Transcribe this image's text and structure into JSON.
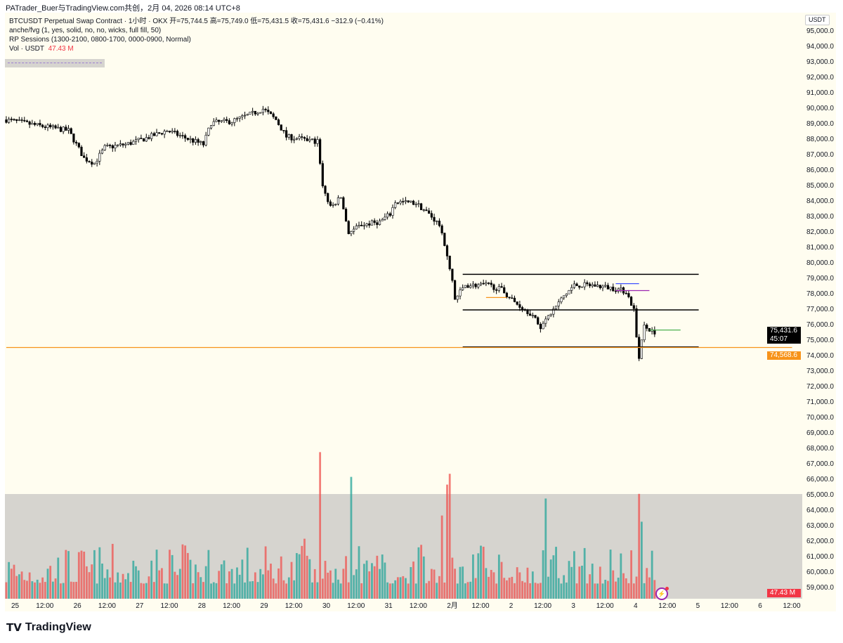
{
  "credit": "PATrader_Buer与TradingView.com共创，2月 04, 2026 08:14 UTC+8",
  "legend": {
    "symbol_line": "BTCUSDT Perpetual Swap Contract · 1小时 · OKX  开=75,744.5  高=75,749.0  低=75,431.5  收=75,431.6  −312.9 (−0.41%)",
    "indicator1": "anche/fvg (1, yes, solid, no, no, wicks, full fill, 50)",
    "indicator2": "RP Sessions (1300-2100, 0800-1700, 0000-0900, Normal)",
    "vol_label": "Vol · USDT",
    "vol_value": "47.43 M"
  },
  "currency_button": "USDT",
  "price_tags": {
    "last_price": "75,431.6",
    "countdown": "45:07",
    "level": "74,568.6",
    "volume": "47.43 M"
  },
  "colors": {
    "bg": "#fffdf0",
    "up": "#26a69a",
    "down": "#ef5350",
    "level": "#f7931a",
    "volume_pane": "#d6d4cf"
  },
  "footer": {
    "brand": "TradingView"
  },
  "chart_data": {
    "type": "candlestick",
    "symbol": "BTCUSDT",
    "interval": "1h",
    "y_ticks": [
      "95,000.0",
      "94,000.0",
      "93,000.0",
      "92,000.0",
      "91,000.0",
      "90,000.0",
      "89,000.0",
      "88,000.0",
      "87,000.0",
      "86,000.0",
      "85,000.0",
      "84,000.0",
      "83,000.0",
      "82,000.0",
      "81,000.0",
      "80,000.0",
      "79,000.0",
      "78,000.0",
      "77,000.0",
      "76,000.0",
      "75,000.0",
      "74,000.0",
      "73,000.0",
      "72,000.0",
      "71,000.0",
      "70,000.0",
      "69,000.0",
      "68,000.0",
      "67,000.0",
      "66,000.0",
      "65,000.0",
      "64,000.0",
      "63,000.0",
      "62,000.0",
      "61,000.0",
      "60,000.0",
      "59,000.0"
    ],
    "ylim": [
      59000,
      95000
    ],
    "x_ticks": [
      "25",
      "12:00",
      "26",
      "12:00",
      "27",
      "12:00",
      "28",
      "12:00",
      "29",
      "12:00",
      "30",
      "12:00",
      "31",
      "12:00",
      "2月",
      "12:00",
      "2",
      "12:00",
      "3",
      "12:00",
      "4",
      "12:00",
      "5",
      "12:00",
      "6",
      "12:00"
    ],
    "x_hours_range": [
      -3,
      264
    ],
    "close_path": [
      [
        -3,
        89300
      ],
      [
        10,
        88900
      ],
      [
        21,
        88600
      ],
      [
        27,
        86800
      ],
      [
        31,
        86500
      ],
      [
        35,
        87500
      ],
      [
        43,
        87700
      ],
      [
        49,
        88000
      ],
      [
        59,
        88600
      ],
      [
        68,
        88000
      ],
      [
        73,
        87700
      ],
      [
        76,
        89100
      ],
      [
        84,
        89200
      ],
      [
        92,
        89700
      ],
      [
        96,
        90000
      ],
      [
        101,
        89300
      ],
      [
        105,
        88200
      ],
      [
        113,
        88000
      ],
      [
        117,
        87900
      ],
      [
        119,
        85000
      ],
      [
        122,
        83600
      ],
      [
        126,
        84300
      ],
      [
        129,
        82000
      ],
      [
        134,
        82500
      ],
      [
        141,
        82700
      ],
      [
        145,
        83200
      ],
      [
        147,
        84000
      ],
      [
        155,
        83900
      ],
      [
        160,
        83200
      ],
      [
        164,
        82500
      ],
      [
        166,
        81100
      ],
      [
        169,
        78900
      ],
      [
        170,
        77700
      ],
      [
        174,
        78600
      ],
      [
        183,
        78600
      ],
      [
        188,
        78300
      ],
      [
        193,
        77500
      ],
      [
        199,
        76800
      ],
      [
        203,
        75900
      ],
      [
        207,
        76800
      ],
      [
        212,
        77900
      ],
      [
        216,
        78600
      ],
      [
        223,
        78600
      ],
      [
        231,
        78400
      ],
      [
        236,
        78200
      ],
      [
        239,
        77000
      ],
      [
        240,
        75200
      ],
      [
        241,
        73900
      ],
      [
        243,
        75900
      ],
      [
        245,
        75700
      ],
      [
        247,
        75431.6
      ]
    ],
    "horizontal_levels": [
      {
        "price": 79300,
        "from_h": 173,
        "to_h": 264,
        "color": "#000000"
      },
      {
        "price": 77000,
        "from_h": 173,
        "to_h": 264,
        "color": "#000000"
      },
      {
        "price": 74600,
        "from_h": 173,
        "to_h": 264,
        "color": "#000000"
      },
      {
        "price": 74568.6,
        "from_h": -3,
        "to_h": 300,
        "color": "#f7931a"
      },
      {
        "price": 77800,
        "from_h": 182,
        "to_h": 190,
        "color": "#f7931a"
      },
      {
        "price": 78700,
        "from_h": 232,
        "to_h": 241,
        "color": "#3f51ff"
      },
      {
        "price": 78250,
        "from_h": 232,
        "to_h": 245,
        "color": "#9c27b0"
      },
      {
        "price": 75700,
        "from_h": 245,
        "to_h": 257,
        "color": "#4caf50"
      }
    ],
    "volume_spikes": [
      [
        118,
        67800
      ],
      [
        130,
        66200
      ],
      [
        167,
        65700
      ],
      [
        168,
        66400
      ],
      [
        205,
        64800
      ],
      [
        241,
        65100
      ],
      [
        165,
        63700
      ],
      [
        242,
        63300
      ],
      [
        112,
        62200
      ]
    ]
  }
}
